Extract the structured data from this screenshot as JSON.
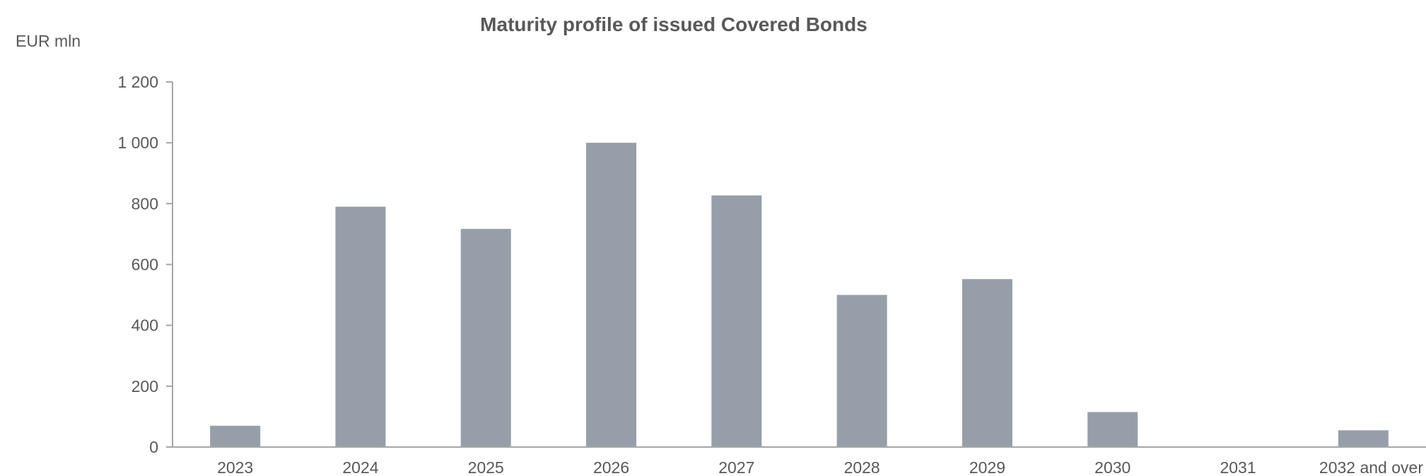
{
  "chart_data": {
    "type": "bar",
    "title": "Maturity profile of issued Covered Bonds",
    "ylabel": "EUR mln",
    "xlabel": "",
    "categories": [
      "2023",
      "2024",
      "2025",
      "2026",
      "2027",
      "2028",
      "2029",
      "2030",
      "2031",
      "2032 and over"
    ],
    "values": [
      70,
      790,
      717,
      1000,
      827,
      500,
      552,
      115,
      0,
      55
    ],
    "ylim": [
      0,
      1200
    ],
    "yticks": [
      0,
      200,
      400,
      600,
      800,
      1000,
      1200
    ],
    "ytick_labels": [
      "0",
      "200",
      "400",
      "600",
      "800",
      "1 000",
      "1 200"
    ],
    "grid": false,
    "legend": "none",
    "colors": {
      "bar": "#969fa9",
      "text": "#595959",
      "axis": "#a6a6a6"
    }
  }
}
